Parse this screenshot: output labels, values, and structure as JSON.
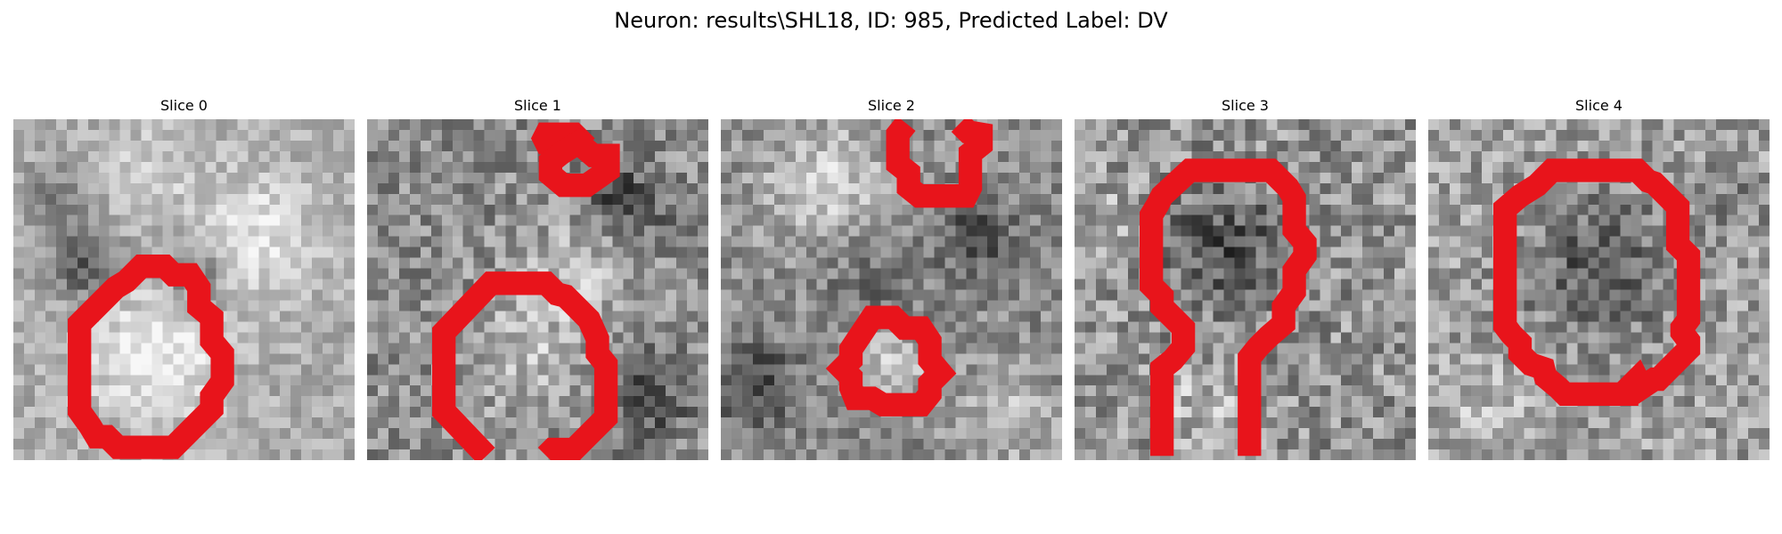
{
  "figure": {
    "title": "Neuron: results\\SHL18, ID: 985, Predicted Label: DV"
  },
  "contour_color": "#e8141b",
  "slices": [
    {
      "title": "Slice 0"
    },
    {
      "title": "Slice 1"
    },
    {
      "title": "Slice 2"
    },
    {
      "title": "Slice 3"
    },
    {
      "title": "Slice 4"
    }
  ]
}
